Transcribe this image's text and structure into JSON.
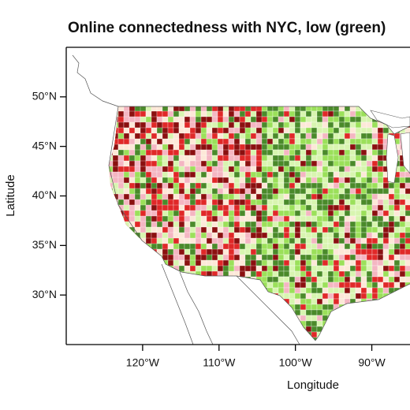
{
  "chart_data": {
    "type": "map",
    "title": "Online connectedness with NYC, low (green)",
    "xlabel": "Longitude",
    "ylabel": "Latitude",
    "xlim": [
      -130,
      -85
    ],
    "ylim": [
      25,
      55
    ],
    "xticks": [
      {
        "value": -120,
        "label": "120°W"
      },
      {
        "value": -110,
        "label": "110°W"
      },
      {
        "value": -100,
        "label": "100°W"
      },
      {
        "value": -90,
        "label": "90°W"
      }
    ],
    "yticks": [
      {
        "value": 30,
        "label": "30°N"
      },
      {
        "value": 35,
        "label": "35°N"
      },
      {
        "value": 40,
        "label": "40°N"
      },
      {
        "value": 45,
        "label": "45°N"
      },
      {
        "value": 50,
        "label": "50°N"
      }
    ]
  }
}
